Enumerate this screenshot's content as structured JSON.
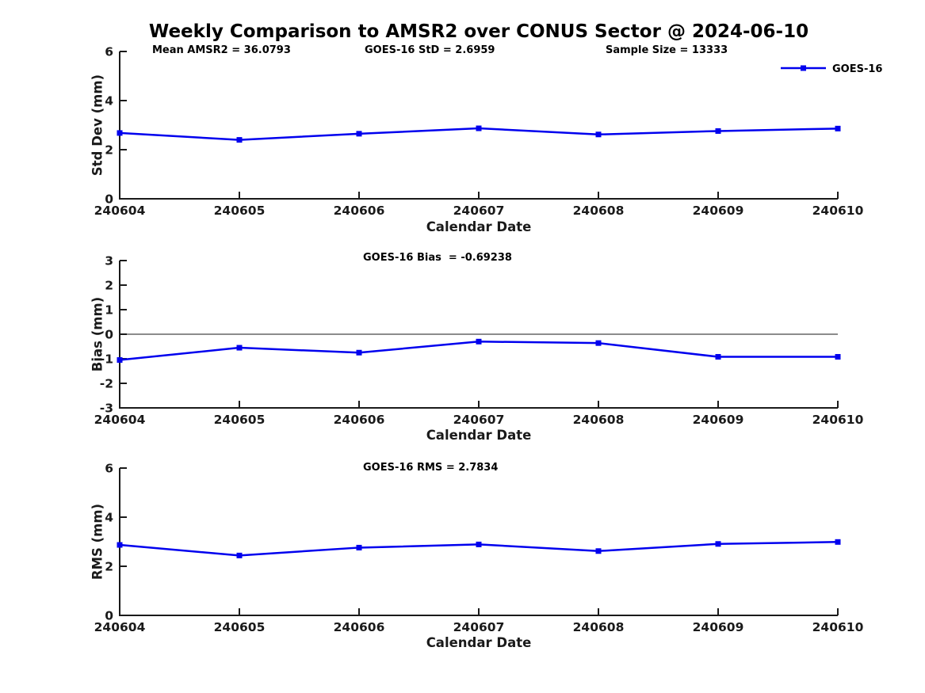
{
  "header": {
    "title": "Weekly Comparison to AMSR2 over CONUS Sector @ 2024-06-10"
  },
  "legend": {
    "label": "GOES-16",
    "marker": "square"
  },
  "colors": {
    "line": "#0000ee",
    "axis": "#1a1a1a",
    "tick_label": "#1a1a1a",
    "title": "#000000",
    "zero_line": "#666666",
    "background": "#ffffff"
  },
  "chart_data": [
    {
      "id": "std-dev",
      "type": "line",
      "categories": [
        "240604",
        "240605",
        "240606",
        "240607",
        "240608",
        "240609",
        "240610"
      ],
      "series": [
        {
          "name": "GOES-16",
          "values": [
            2.68,
            2.4,
            2.65,
            2.87,
            2.62,
            2.76,
            2.86
          ]
        }
      ],
      "annotations": [
        "Mean AMSR2 = 36.0793",
        "GOES-16 StD = 2.6959",
        "Sample Size = 13333"
      ],
      "xlabel": "Calendar Date",
      "ylabel": "Std Dev (mm)",
      "ylim": [
        0,
        6
      ],
      "yticks": [
        0,
        2,
        4,
        6
      ],
      "zero_line": false,
      "legend_position": "top-right",
      "grid": false
    },
    {
      "id": "bias",
      "type": "line",
      "categories": [
        "240604",
        "240605",
        "240606",
        "240607",
        "240608",
        "240609",
        "240610"
      ],
      "series": [
        {
          "name": "GOES-16",
          "values": [
            -1.05,
            -0.55,
            -0.75,
            -0.3,
            -0.36,
            -0.92,
            -0.92
          ]
        }
      ],
      "annotation": "GOES-16 Bias  = -0.69238",
      "xlabel": "Calendar Date",
      "ylabel": "Bias (mm)",
      "ylim": [
        -3,
        3
      ],
      "yticks": [
        -3,
        -2,
        -1,
        0,
        1,
        2,
        3
      ],
      "zero_line": true,
      "grid": false
    },
    {
      "id": "rms",
      "type": "line",
      "categories": [
        "240604",
        "240605",
        "240606",
        "240607",
        "240608",
        "240609",
        "240610"
      ],
      "series": [
        {
          "name": "GOES-16",
          "values": [
            2.87,
            2.44,
            2.76,
            2.89,
            2.62,
            2.91,
            2.99
          ]
        }
      ],
      "annotation": "GOES-16 RMS = 2.7834",
      "xlabel": "Calendar Date",
      "ylabel": "RMS (mm)",
      "ylim": [
        0,
        6
      ],
      "yticks": [
        0,
        2,
        4,
        6
      ],
      "zero_line": false,
      "grid": false
    }
  ]
}
